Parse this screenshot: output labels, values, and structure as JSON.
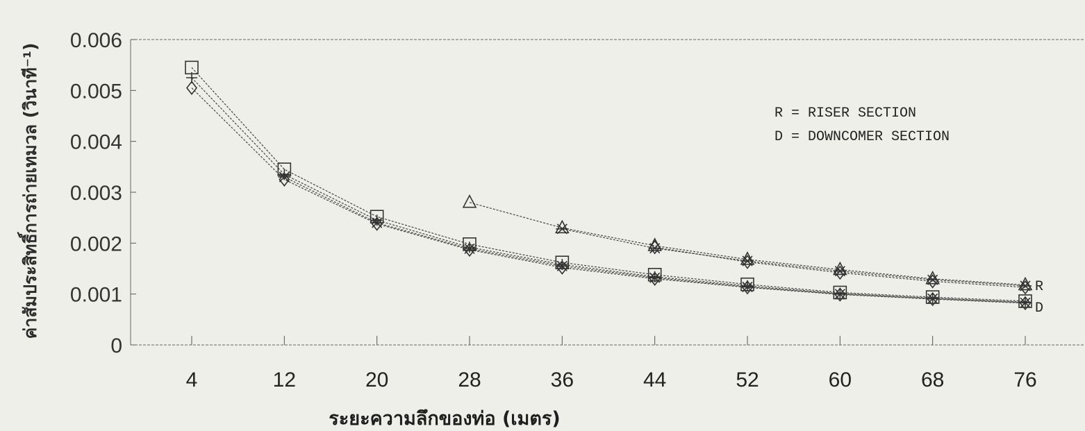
{
  "chart_data": {
    "type": "line",
    "xlabel": "ระยะความลึกของท่อ (เมตร)",
    "ylabel": "ค่าสัมประสิทธิ์การถ่ายเทมวล (วินาที⁻¹)",
    "x_ticks": [
      "4",
      "12",
      "20",
      "28",
      "36",
      "44",
      "52",
      "60",
      "68",
      "76"
    ],
    "y_ticks": [
      "0",
      "0.001",
      "0.002",
      "0.003",
      "0.004",
      "0.005",
      "0.006"
    ],
    "xlim": [
      4,
      76
    ],
    "ylim": [
      0,
      0.006
    ],
    "grid": false,
    "legend_position": "top-right",
    "legend": [
      "R = RISER SECTION",
      "D = DOWNCOMER SECTION"
    ],
    "end_labels": [
      "R",
      "D"
    ],
    "series": [
      {
        "marker": "triangle",
        "x": [
          28,
          36,
          44,
          52,
          60,
          68,
          76
        ],
        "values": [
          0.0028,
          0.0023,
          0.00195,
          0.00168,
          0.00148,
          0.0013,
          0.00118
        ]
      },
      {
        "marker": "star",
        "x": [
          36,
          44,
          52,
          60,
          68,
          76
        ],
        "values": [
          0.00228,
          0.0019,
          0.00165,
          0.00145,
          0.00128,
          0.00116
        ]
      },
      {
        "marker": "diamond",
        "x": [
          44,
          52,
          60,
          68,
          76
        ],
        "values": [
          0.00192,
          0.00163,
          0.00142,
          0.00125,
          0.00113
        ]
      },
      {
        "marker": "square",
        "x": [
          4,
          12,
          20,
          28,
          36,
          44,
          52,
          60,
          68,
          76
        ],
        "values": [
          0.00545,
          0.00345,
          0.00252,
          0.00198,
          0.00162,
          0.00138,
          0.00119,
          0.00103,
          0.00094,
          0.00086
        ]
      },
      {
        "marker": "plus",
        "x": [
          4,
          12,
          20,
          28,
          36,
          44,
          52,
          60,
          68,
          76
        ],
        "values": [
          0.00525,
          0.00335,
          0.00245,
          0.00192,
          0.00158,
          0.00134,
          0.00116,
          0.00101,
          0.00092,
          0.00084
        ]
      },
      {
        "marker": "diamond",
        "x": [
          4,
          12,
          20,
          28,
          36,
          44,
          52,
          60,
          68,
          76
        ],
        "values": [
          0.00505,
          0.00325,
          0.00238,
          0.00187,
          0.00152,
          0.0013,
          0.00113,
          0.00099,
          0.0009,
          0.00082
        ]
      },
      {
        "marker": "star",
        "x": [
          12,
          20,
          28,
          36,
          44,
          52,
          60,
          68,
          76
        ],
        "values": [
          0.0033,
          0.0024,
          0.00189,
          0.00155,
          0.00132,
          0.00114,
          0.001,
          0.00091,
          0.00083
        ]
      }
    ]
  }
}
